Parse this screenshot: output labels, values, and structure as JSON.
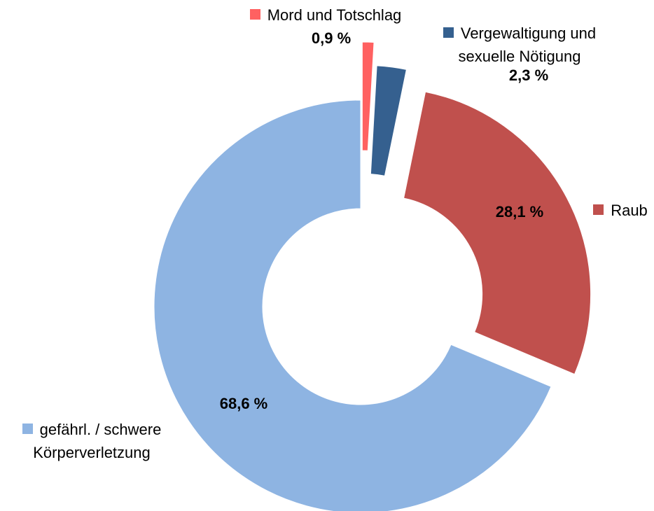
{
  "chart_data": {
    "type": "donut",
    "categories": [
      "Mord und Totschlag",
      "Vergewaltigung und sexuelle Nötigung",
      "Raub",
      "gefährl. / schwere Körperverletzung"
    ],
    "values": [
      0.9,
      2.3,
      28.1,
      68.6
    ],
    "value_labels": [
      "0,9 %",
      "2,3 %",
      "28,1 %",
      "68,6 %"
    ],
    "colors": [
      "#ff6161",
      "#35608f",
      "#c0504d",
      "#8eb4e2"
    ]
  }
}
